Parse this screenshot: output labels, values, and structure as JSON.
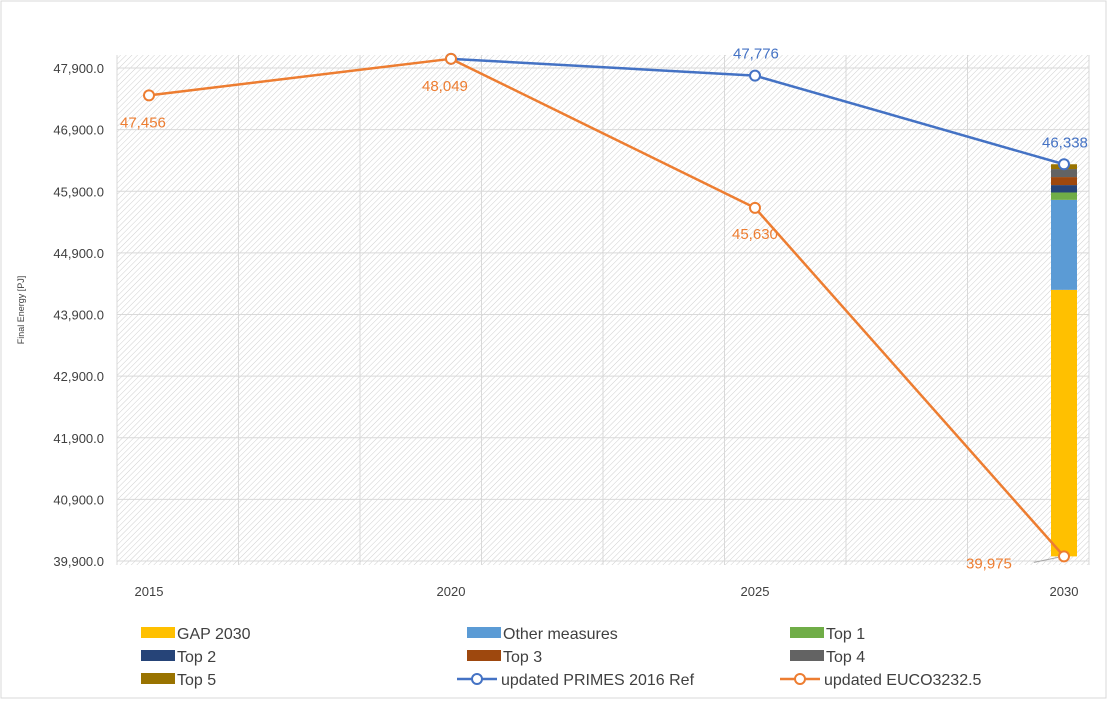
{
  "colors": {
    "axis_text": "#404040",
    "grid": "#d9d9d9",
    "frame": "#d9d9d9",
    "primes": "#4472c4",
    "euco": "#ed7d31",
    "gap": "#ffc000",
    "other": "#5b9bd5",
    "top1": "#70ad47",
    "top2": "#264478",
    "top3": "#9e480e",
    "top4": "#636363",
    "top5": "#997300"
  },
  "chart_data": {
    "type": "line",
    "title": "",
    "xlabel": "",
    "ylabel": "Final Energy [PJ]",
    "categories": [
      "2015",
      "2020",
      "2025",
      "2030"
    ],
    "ylim": [
      39900,
      48100
    ],
    "y_ticks": [
      39900,
      40900,
      41900,
      42900,
      43900,
      44900,
      45900,
      46900,
      47900
    ],
    "y_tick_labels": [
      "39,900.0",
      "40,900.0",
      "41,900.0",
      "42,900.0",
      "43,900.0",
      "44,900.0",
      "45,900.0",
      "46,900.0",
      "47,900.0"
    ],
    "grid": true,
    "legend_position": "bottom",
    "lines": [
      {
        "name": "updated PRIMES 2016 Ref",
        "color_key": "primes",
        "points": [
          {
            "category": "2020",
            "value": 48049,
            "label": null
          },
          {
            "category": "2025",
            "value": 47776,
            "label": "47,776"
          },
          {
            "category": "2030",
            "value": 46338,
            "label": "46,338"
          }
        ]
      },
      {
        "name": "updated EUCO3232.5",
        "color_key": "euco",
        "points": [
          {
            "category": "2015",
            "value": 47456,
            "label": "47,456"
          },
          {
            "category": "2020",
            "value": 48049,
            "label": "48,049"
          },
          {
            "category": "2025",
            "value": 45630,
            "label": "45,630"
          },
          {
            "category": "2030",
            "value": 39975,
            "label": "39,975"
          }
        ]
      }
    ],
    "stacked_bar": {
      "category": "2030",
      "segments": [
        {
          "name": "GAP 2030",
          "color_key": "gap",
          "from": 39975,
          "to": 44300
        },
        {
          "name": "Other measures",
          "color_key": "other",
          "from": 44300,
          "to": 45760
        },
        {
          "name": "Top 1",
          "color_key": "top1",
          "from": 45760,
          "to": 45880
        },
        {
          "name": "Top 2",
          "color_key": "top2",
          "from": 45880,
          "to": 46000
        },
        {
          "name": "Top 3",
          "color_key": "top3",
          "from": 46000,
          "to": 46130
        },
        {
          "name": "Top 4",
          "color_key": "top4",
          "from": 46130,
          "to": 46260
        },
        {
          "name": "Top 5",
          "color_key": "top5",
          "from": 46260,
          "to": 46338
        }
      ]
    },
    "legend": [
      {
        "name": "GAP 2030",
        "kind": "bar",
        "color_key": "gap"
      },
      {
        "name": "Other measures",
        "kind": "bar",
        "color_key": "other"
      },
      {
        "name": "Top 1",
        "kind": "bar",
        "color_key": "top1"
      },
      {
        "name": "Top 2",
        "kind": "bar",
        "color_key": "top2"
      },
      {
        "name": "Top 3",
        "kind": "bar",
        "color_key": "top3"
      },
      {
        "name": "Top 4",
        "kind": "bar",
        "color_key": "top4"
      },
      {
        "name": "Top 5",
        "kind": "bar",
        "color_key": "top5"
      },
      {
        "name": "updated PRIMES 2016 Ref",
        "kind": "line",
        "color_key": "primes"
      },
      {
        "name": "updated EUCO3232.5",
        "kind": "line",
        "color_key": "euco"
      }
    ]
  }
}
